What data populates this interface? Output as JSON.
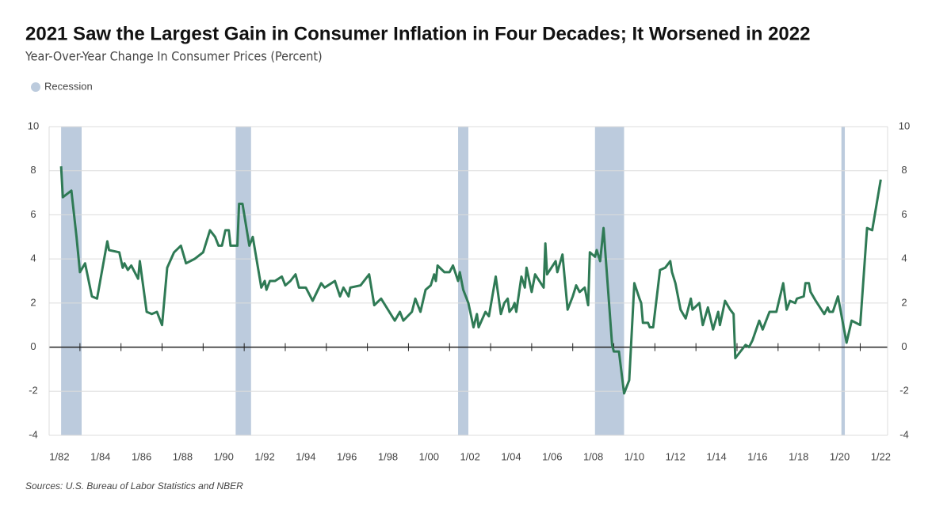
{
  "chart_data": {
    "type": "line",
    "title": "2021 Saw the Largest Gain in Consumer Inflation in Four Decades; It Worsened in 2022",
    "subtitle": "Year-Over-Year Change In Consumer Prices (Percent)",
    "source": "Sources: U.S. Bureau of Labor Statistics and NBER",
    "legend_label": "Recession",
    "recession_color": "#bccbdd",
    "recessions": [
      [
        "1982-02",
        "1983-02"
      ],
      [
        "1990-08",
        "1991-05"
      ],
      [
        "2001-06",
        "2001-12"
      ],
      [
        "2008-02",
        "2009-07"
      ],
      [
        "2020-02",
        "2020-04"
      ]
    ],
    "xlim": [
      "1981-07",
      "2022-05"
    ],
    "xticks": [
      {
        "value": "1982-01",
        "label": "1/82"
      },
      {
        "value": "1984-01",
        "label": "1/84"
      },
      {
        "value": "1986-01",
        "label": "1/86"
      },
      {
        "value": "1988-01",
        "label": "1/88"
      },
      {
        "value": "1990-01",
        "label": "1/90"
      },
      {
        "value": "1992-01",
        "label": "1/92"
      },
      {
        "value": "1994-01",
        "label": "1/94"
      },
      {
        "value": "1996-01",
        "label": "1/96"
      },
      {
        "value": "1998-01",
        "label": "1/98"
      },
      {
        "value": "2000-01",
        "label": "1/00"
      },
      {
        "value": "2002-01",
        "label": "1/02"
      },
      {
        "value": "2004-01",
        "label": "1/04"
      },
      {
        "value": "2006-01",
        "label": "1/06"
      },
      {
        "value": "2008-01",
        "label": "1/08"
      },
      {
        "value": "2010-01",
        "label": "1/10"
      },
      {
        "value": "2012-01",
        "label": "1/12"
      },
      {
        "value": "2014-01",
        "label": "1/14"
      },
      {
        "value": "2016-01",
        "label": "1/16"
      },
      {
        "value": "2018-01",
        "label": "1/18"
      },
      {
        "value": "2020-01",
        "label": "1/20"
      },
      {
        "value": "2022-01",
        "label": "1/22"
      }
    ],
    "ylim": [
      -4,
      10
    ],
    "yticks": [
      -4,
      -2,
      0,
      2,
      4,
      6,
      8,
      10
    ],
    "grid": true,
    "x": [
      "1982-02",
      "1982-03",
      "1982-08",
      "1982-11",
      "1983-01",
      "1983-04",
      "1983-08",
      "1983-11",
      "1984-05",
      "1984-06",
      "1984-12",
      "1985-02",
      "1985-03",
      "1985-05",
      "1985-07",
      "1985-11",
      "1985-12",
      "1986-04",
      "1986-07",
      "1986-10",
      "1987-01",
      "1987-04",
      "1987-08",
      "1987-12",
      "1988-03",
      "1988-08",
      "1989-01",
      "1989-05",
      "1989-08",
      "1989-10",
      "1989-12",
      "1990-02",
      "1990-04",
      "1990-05",
      "1990-09",
      "1990-10",
      "1990-12",
      "1991-04",
      "1991-06",
      "1991-11",
      "1992-01",
      "1992-02",
      "1992-04",
      "1992-07",
      "1992-11",
      "1993-01",
      "1993-04",
      "1993-07",
      "1993-09",
      "1994-01",
      "1994-05",
      "1994-10",
      "1994-12",
      "1995-02",
      "1995-06",
      "1995-09",
      "1995-11",
      "1996-02",
      "1996-03",
      "1996-09",
      "1997-02",
      "1997-05",
      "1997-09",
      "1998-05",
      "1998-08",
      "1998-10",
      "1999-03",
      "1999-05",
      "1999-08",
      "1999-11",
      "2000-02",
      "2000-04",
      "2000-05",
      "2000-06",
      "2000-10",
      "2001-01",
      "2001-03",
      "2001-06",
      "2001-07",
      "2001-09",
      "2001-12",
      "2002-03",
      "2002-05",
      "2002-06",
      "2002-10",
      "2002-12",
      "2003-04",
      "2003-07",
      "2003-09",
      "2003-11",
      "2003-12",
      "2004-02",
      "2004-03",
      "2004-04",
      "2004-07",
      "2004-09",
      "2004-10",
      "2005-01",
      "2005-03",
      "2005-08",
      "2005-09",
      "2005-10",
      "2006-03",
      "2006-04",
      "2006-07",
      "2006-10",
      "2007-01",
      "2007-03",
      "2007-05",
      "2007-08",
      "2007-10",
      "2007-11",
      "2008-02",
      "2008-03",
      "2008-05",
      "2008-07",
      "2008-12",
      "2009-01",
      "2009-04",
      "2009-07",
      "2009-10",
      "2010-01",
      "2010-04",
      "2010-05",
      "2010-06",
      "2010-09",
      "2010-10",
      "2010-12",
      "2011-04",
      "2011-07",
      "2011-10",
      "2011-11",
      "2012-01",
      "2012-04",
      "2012-07",
      "2012-10",
      "2012-11",
      "2013-03",
      "2013-05",
      "2013-08",
      "2013-11",
      "2014-02",
      "2014-03",
      "2014-06",
      "2014-09",
      "2014-11",
      "2014-12",
      "2015-03",
      "2015-06",
      "2015-08",
      "2015-10",
      "2016-02",
      "2016-04",
      "2016-08",
      "2016-12",
      "2017-04",
      "2017-06",
      "2017-08",
      "2017-11",
      "2017-12",
      "2018-04",
      "2018-05",
      "2018-07",
      "2018-08",
      "2018-11",
      "2019-04",
      "2019-06",
      "2019-07",
      "2019-09",
      "2019-12",
      "2020-05",
      "2020-08",
      "2021-01",
      "2021-05",
      "2021-08",
      "2022-01"
    ],
    "series": [
      {
        "name": "Year-Over-Year Change In Consumer Prices",
        "color": "#2f7a55",
        "values": [
          8.2,
          6.8,
          7.1,
          5.0,
          3.4,
          3.8,
          2.3,
          2.2,
          4.8,
          4.4,
          4.3,
          3.6,
          3.8,
          3.5,
          3.7,
          3.1,
          3.9,
          1.6,
          1.5,
          1.6,
          1.0,
          3.6,
          4.3,
          4.6,
          3.8,
          4.0,
          4.3,
          5.3,
          5.0,
          4.6,
          4.6,
          5.3,
          5.3,
          4.6,
          4.6,
          6.5,
          6.5,
          4.6,
          5.0,
          2.7,
          3.0,
          2.6,
          3.0,
          3.0,
          3.2,
          2.8,
          3.0,
          3.3,
          2.7,
          2.7,
          2.1,
          2.9,
          2.7,
          2.8,
          3.0,
          2.3,
          2.7,
          2.3,
          2.7,
          2.8,
          3.3,
          1.9,
          2.2,
          1.2,
          1.6,
          1.2,
          1.6,
          2.2,
          1.6,
          2.6,
          2.8,
          3.3,
          3.0,
          3.7,
          3.4,
          3.4,
          3.7,
          3.0,
          3.4,
          2.6,
          2.0,
          0.9,
          1.5,
          0.9,
          1.6,
          1.4,
          3.2,
          1.5,
          2.0,
          2.2,
          1.6,
          1.8,
          2.0,
          1.6,
          3.2,
          2.7,
          3.6,
          2.5,
          3.3,
          2.7,
          4.7,
          3.3,
          3.9,
          3.4,
          4.2,
          1.7,
          2.3,
          2.8,
          2.5,
          2.7,
          1.9,
          4.3,
          4.1,
          4.4,
          3.9,
          5.4,
          0.1,
          -0.2,
          -0.2,
          -2.1,
          -1.5,
          2.9,
          2.2,
          2.0,
          1.1,
          1.1,
          0.9,
          0.9,
          3.5,
          3.6,
          3.9,
          3.4,
          2.9,
          1.7,
          1.3,
          2.2,
          1.7,
          2.0,
          1.0,
          1.8,
          0.8,
          1.6,
          1.0,
          2.1,
          1.7,
          1.5,
          -0.5,
          -0.2,
          0.1,
          0.0,
          0.3,
          1.2,
          0.8,
          1.6,
          1.6,
          2.9,
          1.7,
          2.1,
          2.0,
          2.2,
          2.3,
          2.9,
          2.9,
          2.5,
          2.1,
          1.5,
          1.8,
          1.6,
          1.6,
          2.3,
          0.2,
          1.2,
          1.0,
          5.4,
          5.3,
          7.6
        ]
      }
    ]
  }
}
